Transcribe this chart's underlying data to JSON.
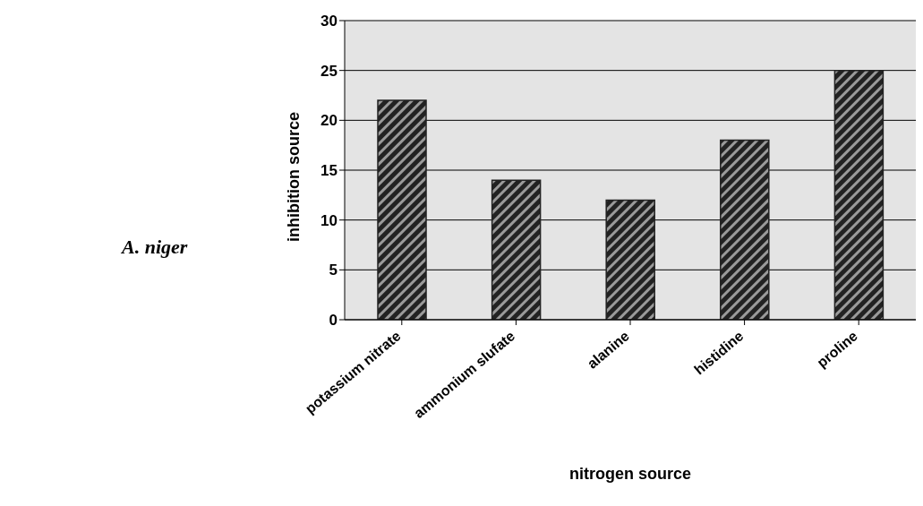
{
  "chart_data": {
    "type": "bar",
    "xlabel": "nitrogen source",
    "ylabel": "inhibition source",
    "categories": [
      "potassium nitrate",
      "ammonium slufate",
      "alanine",
      "histidine",
      "proline"
    ],
    "values": [
      22,
      14,
      12,
      18,
      25
    ],
    "color": "#222222",
    "ylim": [
      0,
      30
    ],
    "yticks": [
      0,
      5,
      10,
      15,
      20,
      25,
      30
    ],
    "grid": "y",
    "annotations": [
      "A. niger"
    ]
  }
}
